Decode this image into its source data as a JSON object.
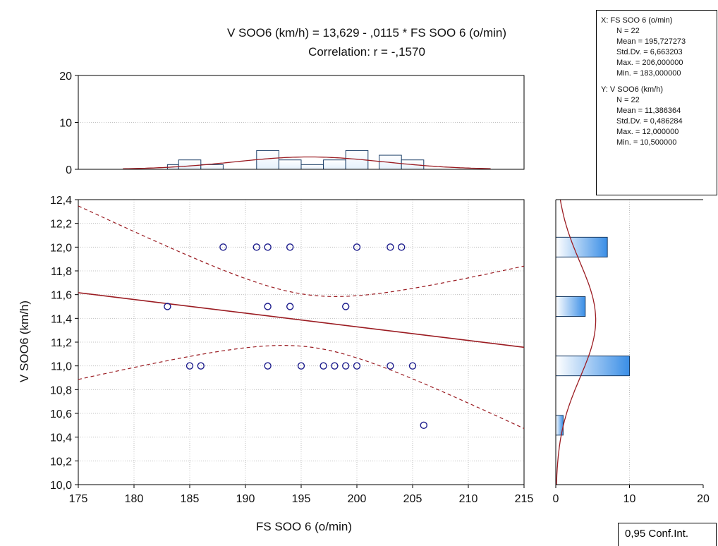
{
  "title": {
    "equation": "V SOO6 (km/h) = 13,629 - ,0115  * FS SOO 6 (o/min)",
    "correlation": "Correlation: r = -,1570"
  },
  "stats": {
    "x_header": "X:  FS SOO 6 (o/min)",
    "x_lines": [
      "N = 22",
      "Mean = 195,727273",
      "Std.Dv. = 6,663203",
      "Max. = 206,000000",
      "Min. = 183,000000"
    ],
    "y_header": "Y:  V SOO6 (km/h)",
    "y_lines": [
      "N = 22",
      "Mean = 11,386364",
      "Std.Dv. = 0,486284",
      "Max. = 12,000000",
      "Min. = 10,500000"
    ]
  },
  "confidence_label": "0,95 Conf.Int.",
  "colors": {
    "regression": "#9b1c22",
    "points": "#1c1c8c",
    "bar_fill_light": "#e6f1fc",
    "bar_fill_dark": "#3a8ee6",
    "bar_stroke": "#1a3d66"
  },
  "chart_data": {
    "type": "scatter",
    "xlabel": "FS SOO 6 (o/min)",
    "ylabel": "V SOO6 (km/h)",
    "xlim": [
      175,
      215
    ],
    "ylim": [
      10.0,
      12.4
    ],
    "x_ticks": [
      "175",
      "180",
      "185",
      "190",
      "195",
      "200",
      "205",
      "210",
      "215"
    ],
    "y_ticks": [
      "10,0",
      "10,2",
      "10,4",
      "10,6",
      "10,8",
      "11,0",
      "11,2",
      "11,4",
      "11,6",
      "11,8",
      "12,0",
      "12,2",
      "12,4"
    ],
    "points": [
      [
        183,
        11.5
      ],
      [
        185,
        11.0
      ],
      [
        186,
        11.0
      ],
      [
        188,
        12.0
      ],
      [
        191,
        12.0
      ],
      [
        192,
        12.0
      ],
      [
        192,
        11.5
      ],
      [
        192,
        11.0
      ],
      [
        194,
        12.0
      ],
      [
        194,
        11.5
      ],
      [
        195,
        11.0
      ],
      [
        197,
        11.0
      ],
      [
        198,
        11.0
      ],
      [
        199,
        11.5
      ],
      [
        199,
        11.0
      ],
      [
        200,
        12.0
      ],
      [
        200,
        11.0
      ],
      [
        203,
        12.0
      ],
      [
        203,
        11.0
      ],
      [
        204,
        12.0
      ],
      [
        205,
        11.0
      ],
      [
        206,
        10.5
      ]
    ],
    "regression": {
      "intercept": 13.629,
      "slope": -0.0115
    },
    "confidence_level": 0.95,
    "grid": true,
    "top_histogram": {
      "ylim": [
        0,
        20
      ],
      "y_ticks": [
        "0",
        "10",
        "20"
      ],
      "bins": [
        [
          183,
          184,
          1
        ],
        [
          184,
          186,
          2
        ],
        [
          186,
          188,
          1
        ],
        [
          191,
          193,
          4
        ],
        [
          193,
          195,
          2
        ],
        [
          195,
          197,
          1
        ],
        [
          197,
          199,
          2
        ],
        [
          199,
          201,
          4
        ],
        [
          202,
          204,
          3
        ],
        [
          204,
          206,
          2
        ]
      ],
      "normal_curve": {
        "mean": 195.727273,
        "sd": 6.663203,
        "xlim": [
          179,
          212
        ]
      }
    },
    "right_histogram": {
      "xlim": [
        0,
        20
      ],
      "x_ticks": [
        "0",
        "10",
        "20"
      ],
      "bins": [
        [
          12.0,
          7
        ],
        [
          11.5,
          4
        ],
        [
          11.0,
          10
        ],
        [
          10.5,
          1
        ]
      ],
      "normal_curve": {
        "mean": 11.386364,
        "sd": 0.486284
      }
    }
  }
}
